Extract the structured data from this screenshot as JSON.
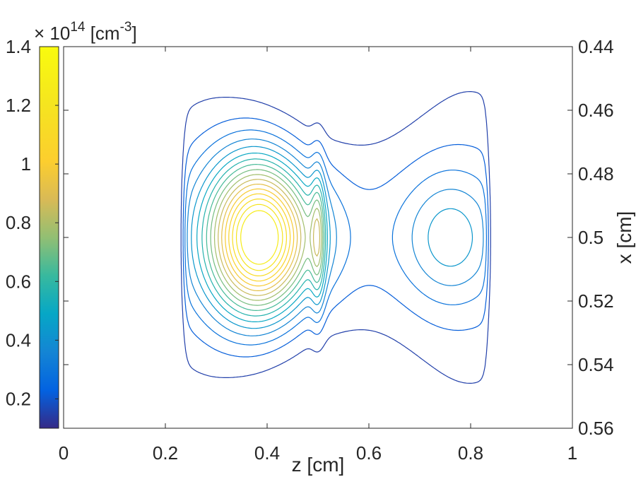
{
  "chart_data": {
    "type": "contour",
    "title": "",
    "xlabel": "z [cm]",
    "ylabel": "x [cm]",
    "xlim": [
      0,
      1
    ],
    "ylim": [
      0.44,
      0.56
    ],
    "y_axis_reversed": true,
    "y_axis_location": "right",
    "grid": false,
    "x_ticks": [
      0,
      0.2,
      0.4,
      0.6,
      0.8,
      1
    ],
    "x_tick_labels": [
      "0",
      "0.2",
      "0.4",
      "0.6",
      "0.8",
      "1"
    ],
    "y_ticks": [
      0.44,
      0.46,
      0.48,
      0.5,
      0.52,
      0.54,
      0.56
    ],
    "y_tick_labels": [
      "0.44",
      "0.46",
      "0.48",
      "0.5",
      "0.52",
      "0.54",
      "0.56"
    ],
    "colorbar": {
      "location": "left",
      "colormap": "parula",
      "range": [
        0.1,
        1.4
      ],
      "ticks": [
        0.2,
        0.4,
        0.6,
        0.8,
        1,
        1.2,
        1.4
      ],
      "tick_labels": [
        "0.2",
        "0.4",
        "0.6",
        "0.8",
        "1",
        "1.2",
        "1.4"
      ],
      "multiplier_prefix": "× 10",
      "multiplier_exponent": "14",
      "unit_prefix": " [cm",
      "unit_exponent": "-3",
      "unit_suffix": "]"
    },
    "contour_levels": [
      0.15,
      0.22,
      0.29,
      0.36,
      0.43,
      0.5,
      0.57,
      0.64,
      0.71,
      0.78,
      0.85,
      0.92,
      0.99,
      1.06,
      1.13,
      1.2,
      1.27
    ],
    "features": [
      {
        "description": "primary maximum",
        "z": 0.385,
        "x": 0.5,
        "value": 1.3
      },
      {
        "description": "secondary narrow maximum",
        "z": 0.5,
        "x": 0.5,
        "value": 0.6
      },
      {
        "description": "broad plateau",
        "z": 0.75,
        "x": 0.5,
        "value": 0.35
      }
    ]
  }
}
